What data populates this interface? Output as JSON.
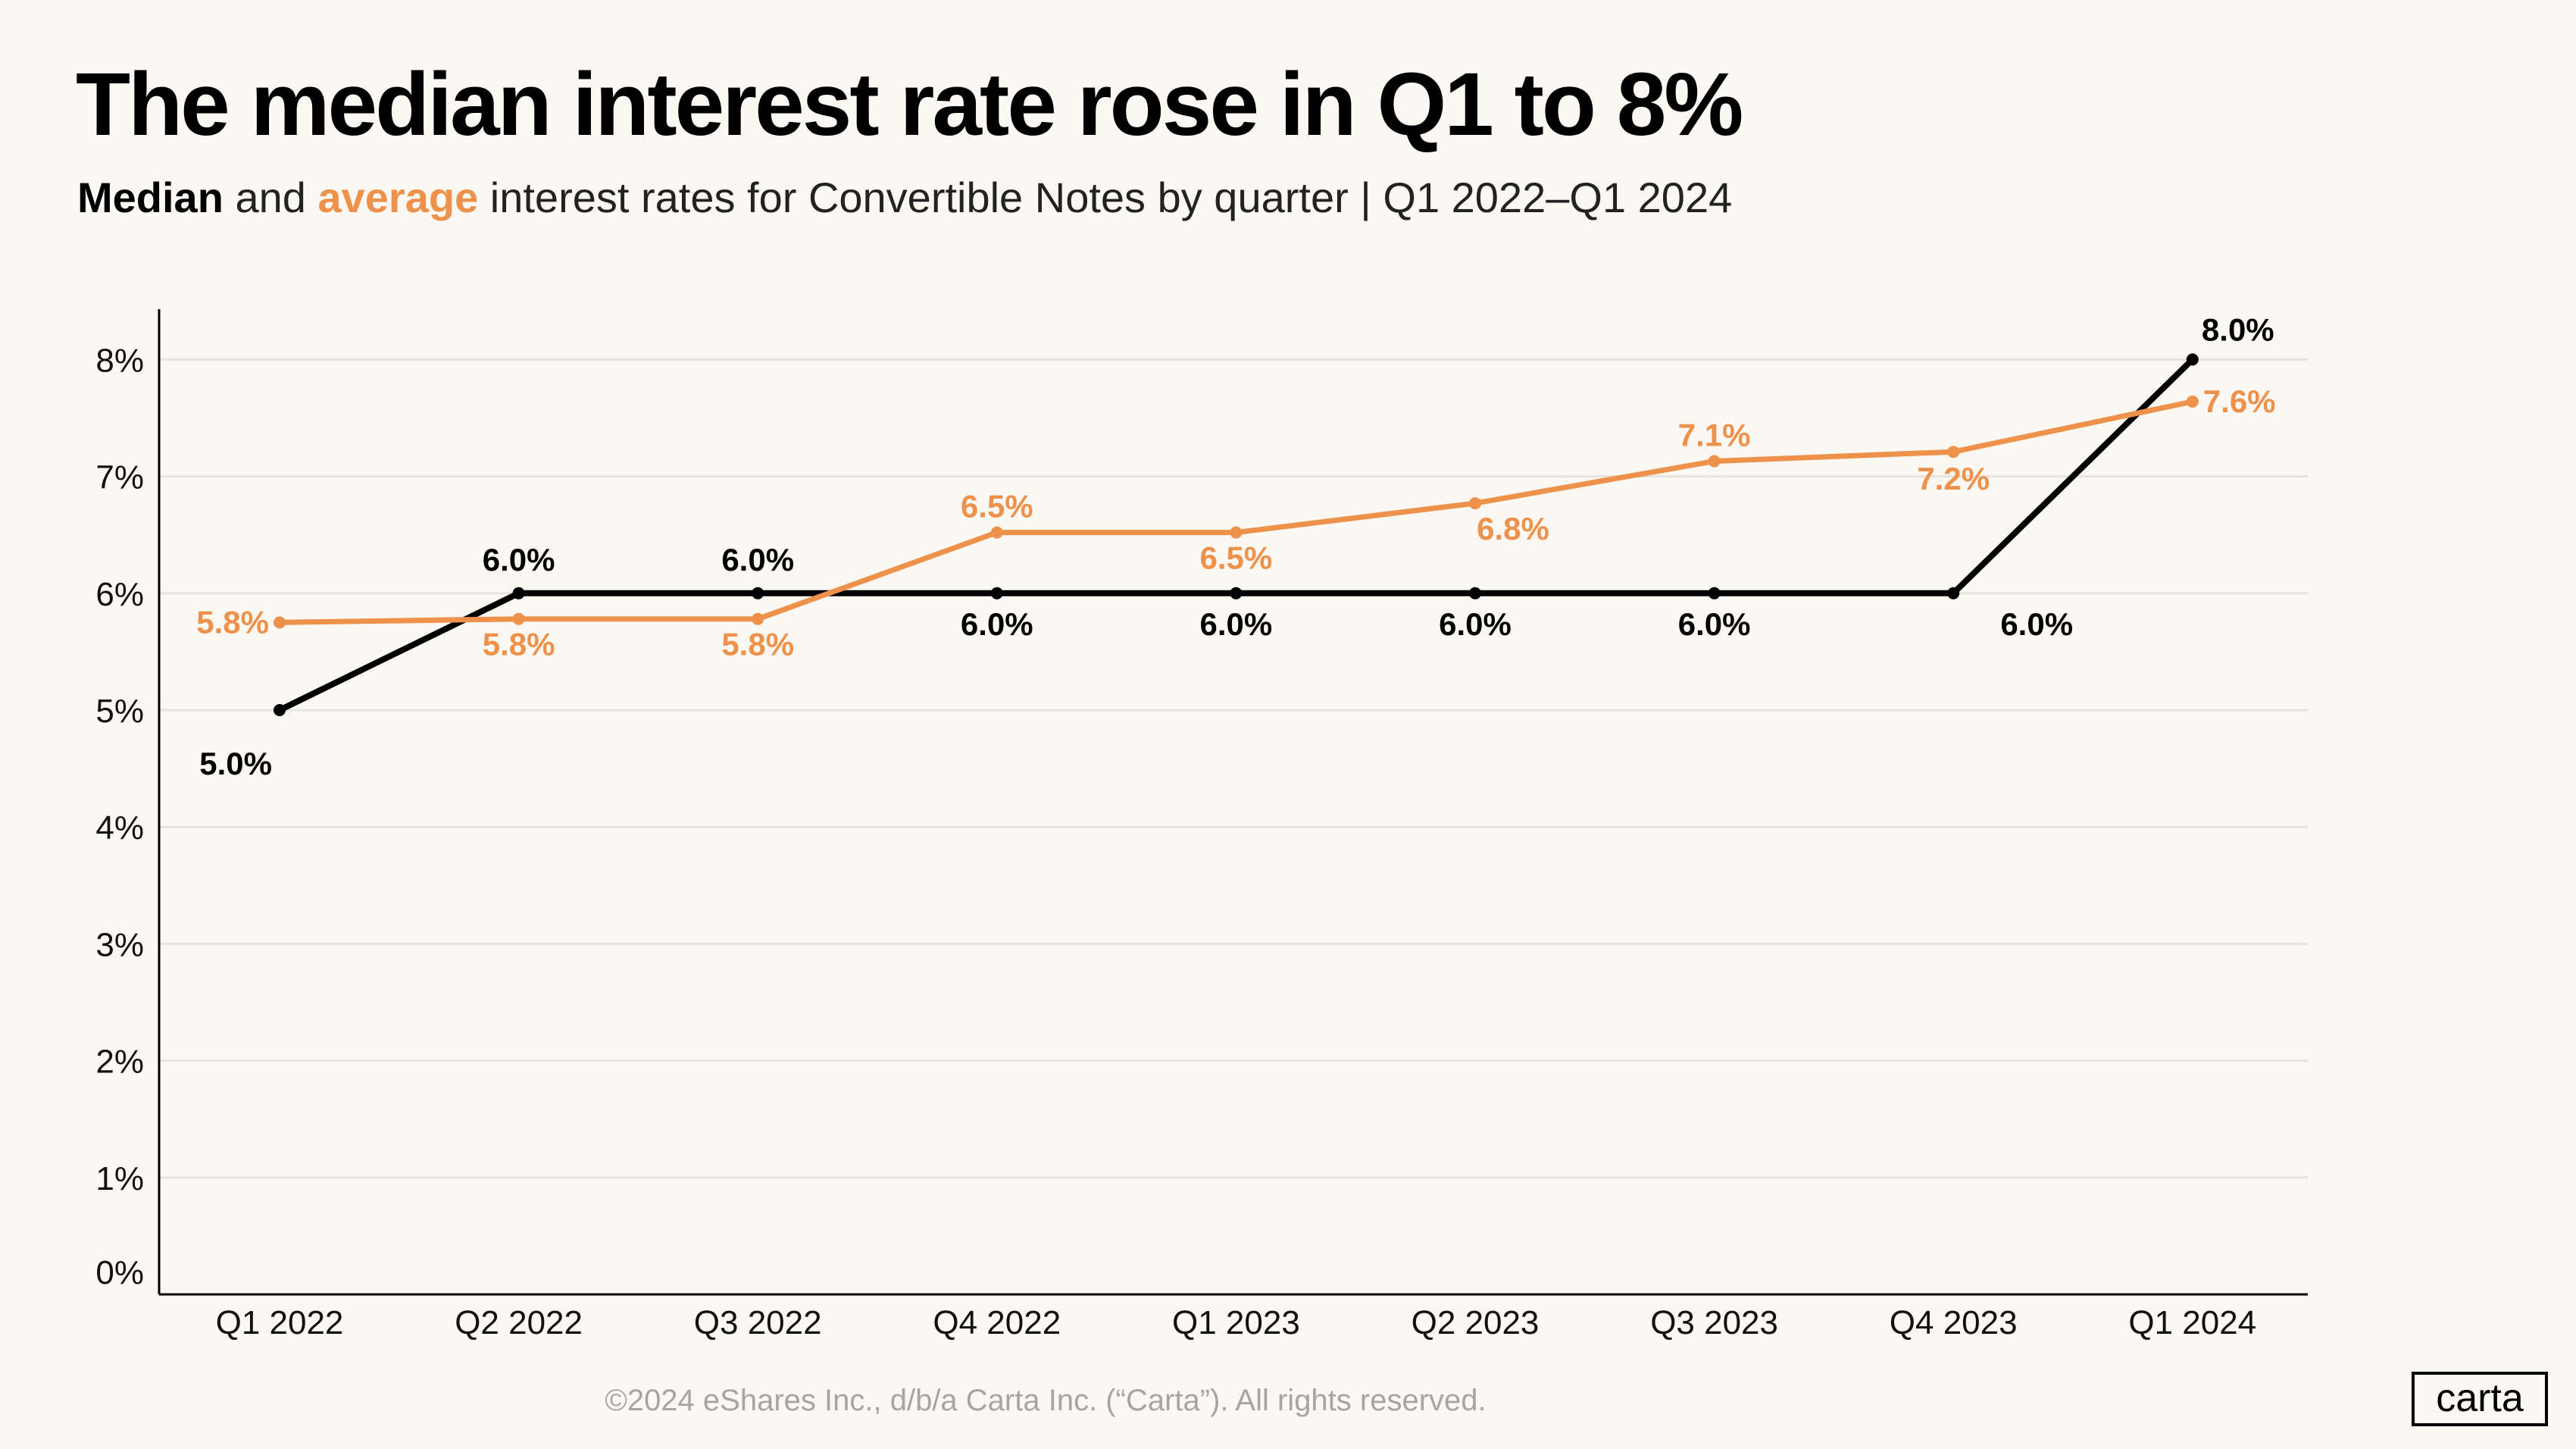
{
  "header": {
    "title": "The median interest rate rose in Q1 to 8%",
    "subtitle_median": "Median",
    "subtitle_and": " and ",
    "subtitle_average": "average",
    "subtitle_rest": " interest rates for Convertible Notes by quarter |  Q1 2022–Q1 2024"
  },
  "footer": {
    "copyright": "©2024 eShares Inc., d/b/a Carta Inc. (“Carta”). All rights reserved.",
    "logo": "carta"
  },
  "colors": {
    "median": "#000000",
    "average": "#ee914a",
    "grid": "#e6e3e0",
    "background": "#fbf8f3"
  },
  "chart_data": {
    "type": "line",
    "categories": [
      "Q1 2022",
      "Q2 2022",
      "Q3 2022",
      "Q4 2022",
      "Q1 2023",
      "Q2 2023",
      "Q3 2023",
      "Q4 2023",
      "Q1 2024"
    ],
    "ylim": [
      0,
      8
    ],
    "yticks": [
      "0%",
      "1%",
      "2%",
      "3%",
      "4%",
      "5%",
      "6%",
      "7%",
      "8%"
    ],
    "grid": true,
    "series": [
      {
        "name": "Median",
        "color": "#000000",
        "values": [
          5.0,
          6.0,
          6.0,
          6.0,
          6.0,
          6.0,
          6.0,
          6.0,
          8.0
        ],
        "labels": [
          "5.0%",
          "6.0%",
          "6.0%",
          "6.0%",
          "6.0%",
          "6.0%",
          "6.0%",
          "6.0%",
          "8.0%"
        ]
      },
      {
        "name": "Average",
        "color": "#ee914a",
        "values": [
          5.75,
          5.78,
          5.78,
          6.52,
          6.52,
          6.77,
          7.13,
          7.21,
          7.64
        ],
        "labels": [
          "5.8%",
          "5.8%",
          "5.8%",
          "6.5%",
          "6.5%",
          "6.8%",
          "7.1%",
          "7.2%",
          "7.6%"
        ]
      }
    ]
  }
}
